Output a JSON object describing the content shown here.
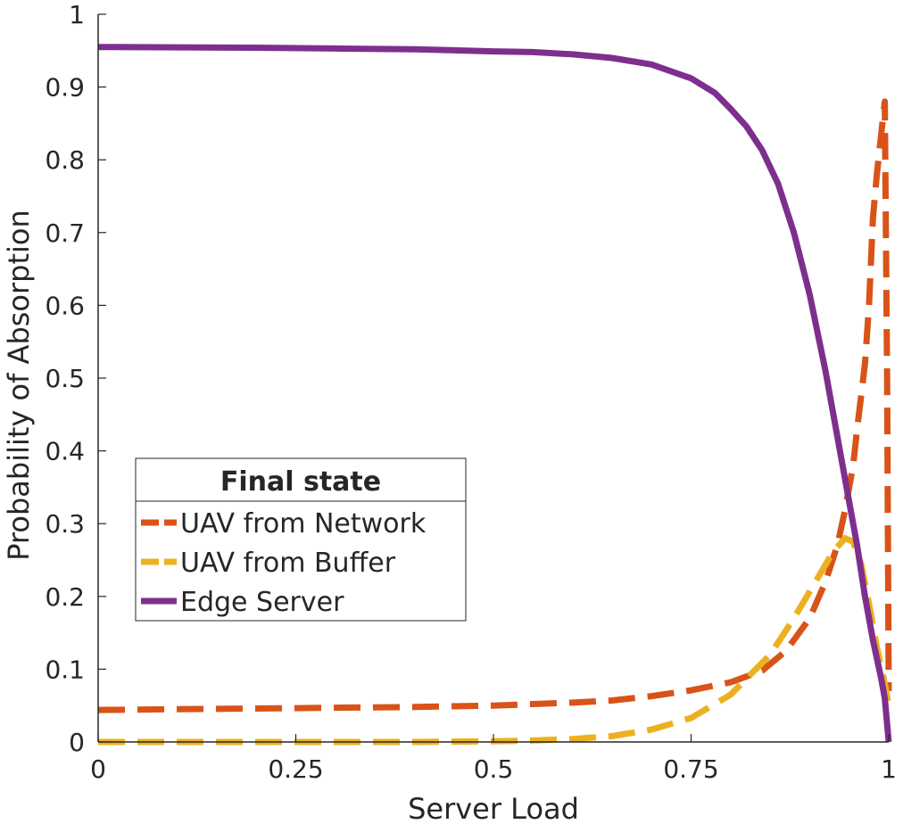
{
  "chart_data": {
    "type": "line",
    "xlabel": "Server Load",
    "ylabel": "Probability of Absorption",
    "xlim": [
      0,
      1
    ],
    "ylim": [
      0,
      1
    ],
    "xticks": [
      {
        "value": 0,
        "label": "0"
      },
      {
        "value": 0.25,
        "label": "0.25"
      },
      {
        "value": 0.5,
        "label": "0.5"
      },
      {
        "value": 0.75,
        "label": "0.75"
      },
      {
        "value": 1,
        "label": "1"
      }
    ],
    "yticks": [
      {
        "value": 0,
        "label": "0"
      },
      {
        "value": 0.1,
        "label": "0.1"
      },
      {
        "value": 0.2,
        "label": "0.2"
      },
      {
        "value": 0.3,
        "label": "0.3"
      },
      {
        "value": 0.4,
        "label": "0.4"
      },
      {
        "value": 0.5,
        "label": "0.5"
      },
      {
        "value": 0.6,
        "label": "0.6"
      },
      {
        "value": 0.7,
        "label": "0.7"
      },
      {
        "value": 0.8,
        "label": "0.8"
      },
      {
        "value": 0.9,
        "label": "0.9"
      },
      {
        "value": 1,
        "label": "1"
      }
    ],
    "grid": false,
    "legend": {
      "title": "Final state",
      "placement": "lower-left"
    },
    "series": [
      {
        "name": "UAV from Network",
        "color": "#D95319",
        "style": "dashed",
        "points": [
          [
            0,
            0.044
          ],
          [
            0.1,
            0.045
          ],
          [
            0.2,
            0.046
          ],
          [
            0.3,
            0.047
          ],
          [
            0.4,
            0.048
          ],
          [
            0.5,
            0.05
          ],
          [
            0.6,
            0.054
          ],
          [
            0.65,
            0.057
          ],
          [
            0.7,
            0.063
          ],
          [
            0.75,
            0.071
          ],
          [
            0.8,
            0.082
          ],
          [
            0.84,
            0.098
          ],
          [
            0.87,
            0.125
          ],
          [
            0.9,
            0.17
          ],
          [
            0.92,
            0.22
          ],
          [
            0.935,
            0.27
          ],
          [
            0.945,
            0.32
          ],
          [
            0.955,
            0.38
          ],
          [
            0.96,
            0.43
          ],
          [
            0.97,
            0.52
          ],
          [
            0.975,
            0.6
          ],
          [
            0.98,
            0.72
          ],
          [
            0.985,
            0.78
          ],
          [
            0.99,
            0.83
          ],
          [
            0.995,
            0.88
          ],
          [
            0.998,
            0.5
          ],
          [
            1.0,
            0.07
          ]
        ]
      },
      {
        "name": "UAV from Buffer",
        "color": "#EDB120",
        "style": "dashed",
        "points": [
          [
            0,
            0
          ],
          [
            0.2,
            0
          ],
          [
            0.4,
            0
          ],
          [
            0.5,
            0.001
          ],
          [
            0.55,
            0.002
          ],
          [
            0.6,
            0.004
          ],
          [
            0.65,
            0.008
          ],
          [
            0.7,
            0.017
          ],
          [
            0.75,
            0.033
          ],
          [
            0.8,
            0.065
          ],
          [
            0.85,
            0.12
          ],
          [
            0.88,
            0.17
          ],
          [
            0.91,
            0.225
          ],
          [
            0.93,
            0.262
          ],
          [
            0.945,
            0.28
          ],
          [
            0.955,
            0.275
          ],
          [
            0.965,
            0.245
          ],
          [
            0.975,
            0.19
          ],
          [
            0.985,
            0.13
          ],
          [
            0.995,
            0.08
          ],
          [
            1.0,
            0.05
          ]
        ]
      },
      {
        "name": "Edge Server",
        "color": "#7E2F8E",
        "style": "solid",
        "points": [
          [
            0,
            0.955
          ],
          [
            0.2,
            0.954
          ],
          [
            0.3,
            0.953
          ],
          [
            0.4,
            0.952
          ],
          [
            0.5,
            0.949
          ],
          [
            0.55,
            0.948
          ],
          [
            0.6,
            0.945
          ],
          [
            0.65,
            0.94
          ],
          [
            0.7,
            0.931
          ],
          [
            0.75,
            0.912
          ],
          [
            0.78,
            0.892
          ],
          [
            0.8,
            0.87
          ],
          [
            0.82,
            0.846
          ],
          [
            0.84,
            0.813
          ],
          [
            0.86,
            0.767
          ],
          [
            0.88,
            0.7
          ],
          [
            0.9,
            0.615
          ],
          [
            0.92,
            0.51
          ],
          [
            0.94,
            0.39
          ],
          [
            0.96,
            0.27
          ],
          [
            0.97,
            0.2
          ],
          [
            0.98,
            0.14
          ],
          [
            0.99,
            0.09
          ],
          [
            0.995,
            0.06
          ],
          [
            1.0,
            0.0
          ]
        ]
      }
    ]
  }
}
